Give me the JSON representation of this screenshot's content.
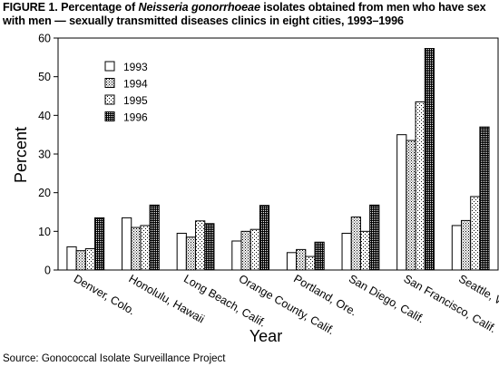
{
  "title": {
    "prefix": "FIGURE 1. Percentage of ",
    "italic": "Neisseria gonorrhoeae",
    "suffix": " isolates obtained from men who have sex with men — sexually transmitted diseases clinics in eight cities, 1993–1996"
  },
  "source": "Source: Gonococcal Isolate Surveillance Project",
  "chart_data": {
    "type": "bar",
    "categories": [
      "Denver, Colo.",
      "Honolulu, Hawaii",
      "Long Beach, Calif.",
      "Orange County, Calif.",
      "Portland, Ore.",
      "San Diego, Calif.",
      "San Francisco, Calif.",
      "Seattle, Wash."
    ],
    "series": [
      {
        "name": "1993",
        "pattern": "white",
        "values": [
          6,
          13.5,
          9.5,
          7.5,
          4.5,
          9.5,
          35,
          11.5
        ]
      },
      {
        "name": "1994",
        "pattern": "dense-dots",
        "values": [
          5,
          11,
          8.5,
          10,
          5.3,
          13.7,
          33.5,
          12.8
        ]
      },
      {
        "name": "1995",
        "pattern": "sparse-dots",
        "values": [
          5.5,
          11.5,
          12.7,
          10.5,
          3.5,
          10,
          43.5,
          19
        ]
      },
      {
        "name": "1996",
        "pattern": "dark",
        "values": [
          13.5,
          16.8,
          12,
          16.7,
          7.2,
          16.8,
          57.3,
          37
        ]
      }
    ],
    "xlabel": "Year",
    "ylabel": "Percent",
    "ylim": [
      0,
      60
    ],
    "yticks": [
      0,
      10,
      20,
      30,
      40,
      50,
      60
    ],
    "legend_position": "top-left",
    "grid": false
  }
}
